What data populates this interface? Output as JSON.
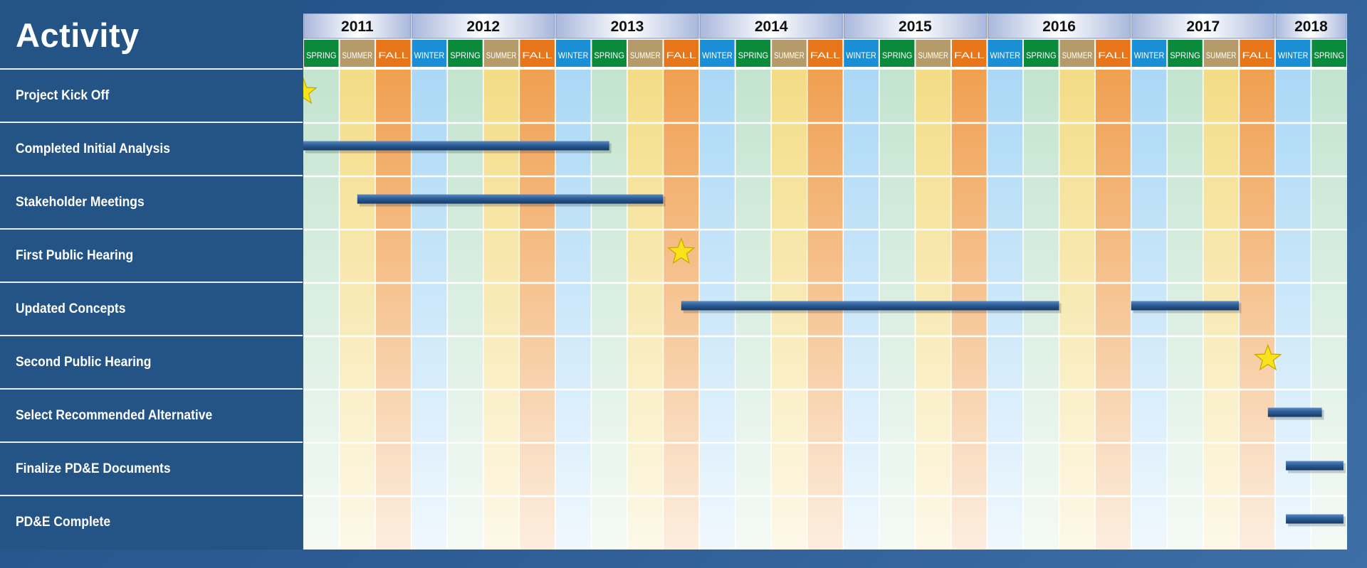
{
  "header": {
    "title": "Activity"
  },
  "chart_data": {
    "type": "gantt",
    "years": [
      "2011",
      "2012",
      "2013",
      "2014",
      "2015",
      "2016",
      "2017",
      "2018"
    ],
    "seasons": [
      {
        "label": "SPRING",
        "type": "spring"
      },
      {
        "label": "SUMMER",
        "type": "summer"
      },
      {
        "label": "FALL",
        "type": "fall"
      },
      {
        "label": "WINTER",
        "type": "winter"
      },
      {
        "label": "SPRING",
        "type": "spring"
      },
      {
        "label": "SUMMER",
        "type": "summer"
      },
      {
        "label": "FALL",
        "type": "fall"
      },
      {
        "label": "WINTER",
        "type": "winter"
      },
      {
        "label": "SPRING",
        "type": "spring"
      },
      {
        "label": "SUMMER",
        "type": "summer"
      },
      {
        "label": "FALL",
        "type": "fall"
      },
      {
        "label": "WINTER",
        "type": "winter"
      },
      {
        "label": "SPRING",
        "type": "spring"
      },
      {
        "label": "SUMMER",
        "type": "summer"
      },
      {
        "label": "FALL",
        "type": "fall"
      },
      {
        "label": "WINTER",
        "type": "winter"
      },
      {
        "label": "SPRING",
        "type": "spring"
      },
      {
        "label": "SUMMER",
        "type": "summer"
      },
      {
        "label": "FALL",
        "type": "fall"
      },
      {
        "label": "WINTER",
        "type": "winter"
      },
      {
        "label": "SPRING",
        "type": "spring"
      },
      {
        "label": "SUMMER",
        "type": "summer"
      },
      {
        "label": "FALL",
        "type": "fall"
      },
      {
        "label": "WINTER",
        "type": "winter"
      },
      {
        "label": "SPRING",
        "type": "spring"
      },
      {
        "label": "SUMMER",
        "type": "summer"
      },
      {
        "label": "FALL",
        "type": "fall"
      },
      {
        "label": "WINTER",
        "type": "winter"
      },
      {
        "label": "SPRING",
        "type": "spring"
      }
    ],
    "activities": [
      {
        "name": "Project Kick Off",
        "type": "milestone",
        "at": 0
      },
      {
        "name": "Completed Initial Analysis",
        "type": "bar",
        "spans": [
          [
            0,
            8.5
          ]
        ]
      },
      {
        "name": "Stakeholder Meetings",
        "type": "bar",
        "spans": [
          [
            1.5,
            10
          ]
        ]
      },
      {
        "name": "First Public Hearing",
        "type": "milestone",
        "at": 10.5
      },
      {
        "name": "Updated Concepts",
        "type": "bar",
        "spans": [
          [
            10.5,
            21
          ],
          [
            23,
            26
          ]
        ]
      },
      {
        "name": "Second Public Hearing",
        "type": "milestone",
        "at": 26.8
      },
      {
        "name": "Select Recommended Alternative",
        "type": "bar",
        "spans": [
          [
            26.8,
            28.3
          ]
        ]
      },
      {
        "name": "Finalize PD&E Documents",
        "type": "bar",
        "spans": [
          [
            27.3,
            28.9
          ]
        ]
      },
      {
        "name": "PD&E Complete",
        "type": "bar",
        "spans": [
          [
            27.3,
            28.9
          ]
        ]
      }
    ]
  },
  "colors": {
    "spring": "#0b8a3c",
    "summer": "#b59a6a",
    "fall": "#e7761b",
    "winter": "#1a8fd6",
    "spring_col": "#c3e4cf",
    "summer_col": "#f4dc85",
    "fall_col": "#f0a050",
    "winter_col": "#aad8f6",
    "bar": "#2b5c96",
    "star": "#f7e21c",
    "star_stroke": "#c8a600"
  }
}
